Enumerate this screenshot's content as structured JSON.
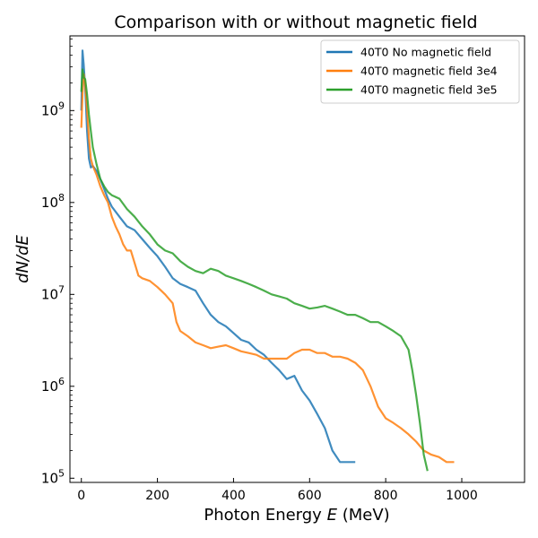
{
  "chart_data": {
    "type": "line",
    "title": "Comparison with or without magnetic field",
    "xlabel": "Photon Energy",
    "xlabel_var": "E",
    "xlabel_unit": "(MeV)",
    "ylabel": "dN/dE",
    "xlim": [
      -30,
      1165
    ],
    "ylim": [
      90000,
      6500000000
    ],
    "yscale": "log",
    "grid": false,
    "legend_position": "top-right",
    "x_ticks": [
      0,
      200,
      400,
      600,
      800,
      1000
    ],
    "y_ticks": [
      {
        "value": 100000,
        "base": "10",
        "exp": "5"
      },
      {
        "value": 1000000,
        "base": "10",
        "exp": "6"
      },
      {
        "value": 10000000,
        "base": "10",
        "exp": "7"
      },
      {
        "value": 100000000,
        "base": "10",
        "exp": "8"
      },
      {
        "value": 1000000000,
        "base": "10",
        "exp": "9"
      }
    ],
    "series": [
      {
        "name": "40T0 No magnetic field",
        "color": "#1f77b4",
        "points": [
          [
            0,
            1000000000.0
          ],
          [
            3,
            4500000000.0
          ],
          [
            6,
            3200000000.0
          ],
          [
            10,
            1800000000.0
          ],
          [
            15,
            600000000.0
          ],
          [
            20,
            300000000.0
          ],
          [
            25,
            240000000.0
          ],
          [
            30,
            250000000.0
          ],
          [
            40,
            220000000.0
          ],
          [
            50,
            180000000.0
          ],
          [
            60,
            140000000.0
          ],
          [
            70,
            110000000.0
          ],
          [
            80,
            90000000.0
          ],
          [
            100,
            70000000.0
          ],
          [
            120,
            55000000.0
          ],
          [
            140,
            50000000.0
          ],
          [
            160,
            40000000.0
          ],
          [
            180,
            32000000.0
          ],
          [
            200,
            26000000.0
          ],
          [
            220,
            20000000.0
          ],
          [
            240,
            15000000.0
          ],
          [
            260,
            13000000.0
          ],
          [
            280,
            12000000.0
          ],
          [
            300,
            11000000.0
          ],
          [
            320,
            8000000.0
          ],
          [
            340,
            6000000.0
          ],
          [
            360,
            5000000.0
          ],
          [
            380,
            4500000.0
          ],
          [
            400,
            3800000.0
          ],
          [
            420,
            3200000.0
          ],
          [
            440,
            3000000.0
          ],
          [
            460,
            2500000.0
          ],
          [
            480,
            2200000.0
          ],
          [
            500,
            1800000.0
          ],
          [
            520,
            1500000.0
          ],
          [
            540,
            1200000.0
          ],
          [
            560,
            1300000.0
          ],
          [
            580,
            900000.0
          ],
          [
            600,
            700000.0
          ],
          [
            620,
            500000.0
          ],
          [
            640,
            350000.0
          ],
          [
            660,
            200000.0
          ],
          [
            680,
            150000.0
          ],
          [
            700,
            150000.0
          ],
          [
            720,
            150000.0
          ]
        ]
      },
      {
        "name": "40T0 magnetic field 3e4",
        "color": "#ff7f0e",
        "points": [
          [
            0,
            650000000.0
          ],
          [
            3,
            1500000000.0
          ],
          [
            6,
            2500000000.0
          ],
          [
            10,
            2000000000.0
          ],
          [
            15,
            1000000000.0
          ],
          [
            20,
            500000000.0
          ],
          [
            25,
            300000000.0
          ],
          [
            30,
            250000000.0
          ],
          [
            40,
            200000000.0
          ],
          [
            50,
            150000000.0
          ],
          [
            60,
            120000000.0
          ],
          [
            70,
            100000000.0
          ],
          [
            80,
            70000000.0
          ],
          [
            90,
            55000000.0
          ],
          [
            100,
            45000000.0
          ],
          [
            110,
            35000000.0
          ],
          [
            120,
            30000000.0
          ],
          [
            130,
            30000000.0
          ],
          [
            140,
            22000000.0
          ],
          [
            150,
            16000000.0
          ],
          [
            160,
            15000000.0
          ],
          [
            180,
            14000000.0
          ],
          [
            200,
            12000000.0
          ],
          [
            220,
            10000000.0
          ],
          [
            240,
            8000000.0
          ],
          [
            250,
            5000000.0
          ],
          [
            260,
            4000000.0
          ],
          [
            280,
            3500000.0
          ],
          [
            300,
            3000000.0
          ],
          [
            320,
            2800000.0
          ],
          [
            340,
            2600000.0
          ],
          [
            360,
            2700000.0
          ],
          [
            380,
            2800000.0
          ],
          [
            400,
            2600000.0
          ],
          [
            420,
            2400000.0
          ],
          [
            440,
            2300000.0
          ],
          [
            460,
            2200000.0
          ],
          [
            480,
            2000000.0
          ],
          [
            500,
            2000000.0
          ],
          [
            520,
            2000000.0
          ],
          [
            540,
            2000000.0
          ],
          [
            560,
            2300000.0
          ],
          [
            580,
            2500000.0
          ],
          [
            600,
            2500000.0
          ],
          [
            620,
            2300000.0
          ],
          [
            640,
            2300000.0
          ],
          [
            660,
            2100000.0
          ],
          [
            680,
            2100000.0
          ],
          [
            700,
            2000000.0
          ],
          [
            720,
            1800000.0
          ],
          [
            740,
            1500000.0
          ],
          [
            760,
            1000000.0
          ],
          [
            780,
            600000.0
          ],
          [
            800,
            450000.0
          ],
          [
            820,
            400000.0
          ],
          [
            840,
            350000.0
          ],
          [
            860,
            300000.0
          ],
          [
            880,
            250000.0
          ],
          [
            900,
            200000.0
          ],
          [
            920,
            180000.0
          ],
          [
            940,
            170000.0
          ],
          [
            960,
            150000.0
          ],
          [
            980,
            150000.0
          ]
        ]
      },
      {
        "name": "40T0 magnetic field 3e5",
        "color": "#2ca02c",
        "points": [
          [
            0,
            1600000000.0
          ],
          [
            3,
            2800000000.0
          ],
          [
            6,
            2300000000.0
          ],
          [
            10,
            2200000000.0
          ],
          [
            15,
            1500000000.0
          ],
          [
            20,
            900000000.0
          ],
          [
            25,
            600000000.0
          ],
          [
            30,
            400000000.0
          ],
          [
            40,
            260000000.0
          ],
          [
            50,
            180000000.0
          ],
          [
            60,
            150000000.0
          ],
          [
            70,
            130000000.0
          ],
          [
            80,
            120000000.0
          ],
          [
            100,
            110000000.0
          ],
          [
            120,
            85000000.0
          ],
          [
            140,
            70000000.0
          ],
          [
            160,
            55000000.0
          ],
          [
            180,
            45000000.0
          ],
          [
            200,
            35000000.0
          ],
          [
            220,
            30000000.0
          ],
          [
            240,
            28000000.0
          ],
          [
            260,
            23000000.0
          ],
          [
            280,
            20000000.0
          ],
          [
            300,
            18000000.0
          ],
          [
            320,
            17000000.0
          ],
          [
            340,
            19000000.0
          ],
          [
            360,
            18000000.0
          ],
          [
            380,
            16000000.0
          ],
          [
            400,
            15000000.0
          ],
          [
            420,
            14000000.0
          ],
          [
            440,
            13000000.0
          ],
          [
            460,
            12000000.0
          ],
          [
            480,
            11000000.0
          ],
          [
            500,
            10000000.0
          ],
          [
            520,
            9500000.0
          ],
          [
            540,
            9000000.0
          ],
          [
            560,
            8000000.0
          ],
          [
            580,
            7500000.0
          ],
          [
            600,
            7000000.0
          ],
          [
            620,
            7200000.0
          ],
          [
            640,
            7500000.0
          ],
          [
            660,
            7000000.0
          ],
          [
            680,
            6500000.0
          ],
          [
            700,
            6000000.0
          ],
          [
            720,
            6000000.0
          ],
          [
            740,
            5500000.0
          ],
          [
            760,
            5000000.0
          ],
          [
            780,
            5000000.0
          ],
          [
            800,
            4500000.0
          ],
          [
            820,
            4000000.0
          ],
          [
            840,
            3500000.0
          ],
          [
            860,
            2500000.0
          ],
          [
            870,
            1500000.0
          ],
          [
            880,
            800000.0
          ],
          [
            890,
            400000.0
          ],
          [
            900,
            180000.0
          ],
          [
            910,
            120000.0
          ]
        ]
      }
    ]
  }
}
